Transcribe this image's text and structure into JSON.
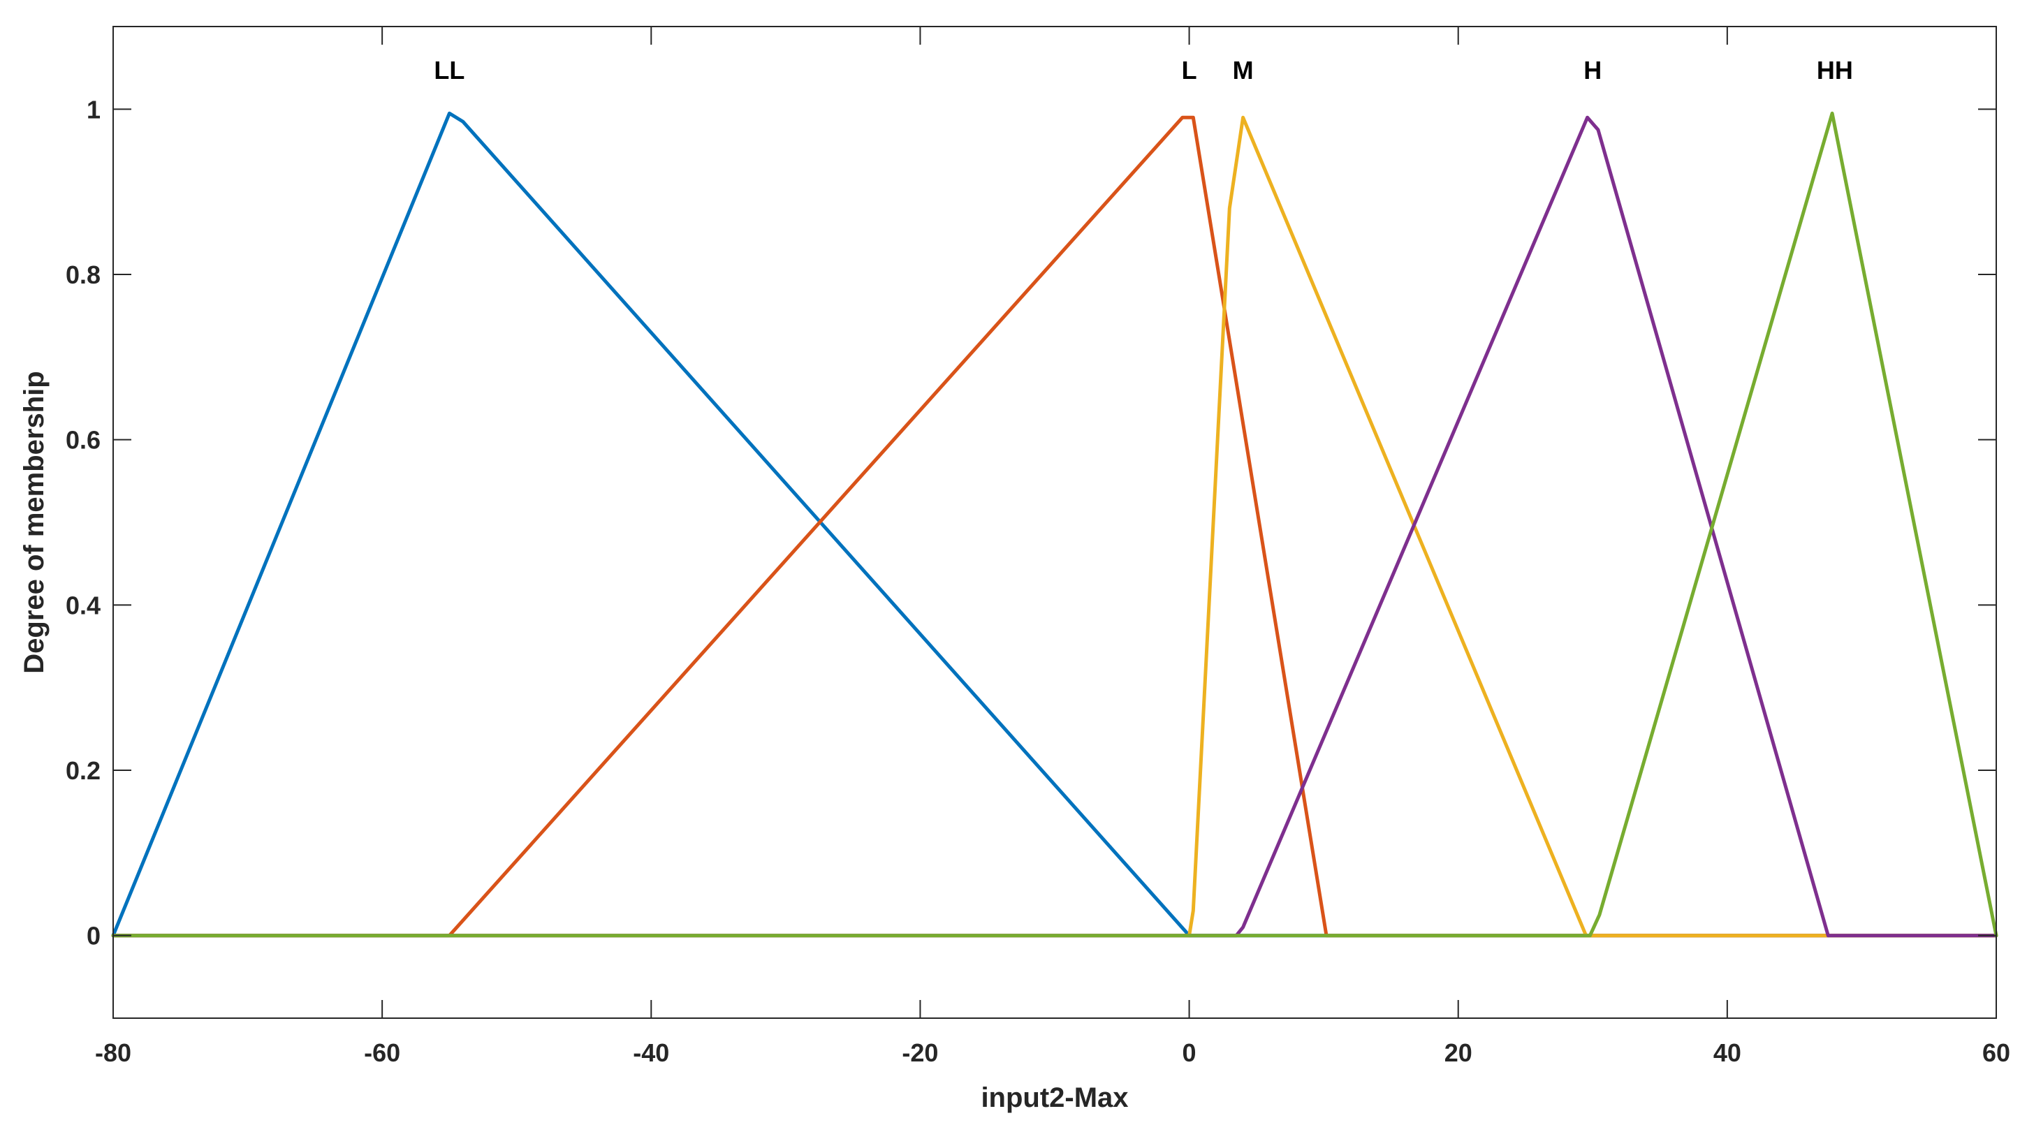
{
  "chart_data": {
    "type": "line",
    "title": "",
    "xlabel": "input2-Max",
    "ylabel": "Degree of membership",
    "xlim": [
      -80,
      60
    ],
    "ylim": [
      -0.1,
      1.1
    ],
    "xticks": [
      -80,
      -60,
      -40,
      -20,
      0,
      20,
      40,
      60
    ],
    "yticks": [
      0,
      0.2,
      0.4,
      0.6,
      0.8,
      1
    ],
    "xtick_labels": [
      "-80",
      "-60",
      "-40",
      "-20",
      "0",
      "20",
      "40",
      "60"
    ],
    "ytick_labels": [
      "0",
      "0.2",
      "0.4",
      "0.6",
      "0.8",
      "1"
    ],
    "grid": false,
    "series": [
      {
        "name": "LL",
        "color": "#0072BD",
        "label_x": -55,
        "points": [
          [
            -80,
            0
          ],
          [
            -55,
            0.995
          ],
          [
            -54,
            0.985
          ],
          [
            0,
            0
          ],
          [
            60,
            0
          ]
        ]
      },
      {
        "name": "L",
        "color": "#D95319",
        "label_x": 0,
        "points": [
          [
            -80,
            0
          ],
          [
            -55,
            0
          ],
          [
            -0.5,
            0.99
          ],
          [
            0.3,
            0.99
          ],
          [
            10.2,
            0
          ],
          [
            60,
            0
          ]
        ]
      },
      {
        "name": "M",
        "color": "#EDB120",
        "label_x": 4,
        "points": [
          [
            -80,
            0
          ],
          [
            0,
            0
          ],
          [
            0.3,
            0.03
          ],
          [
            3,
            0.88
          ],
          [
            4,
            0.99
          ],
          [
            29.5,
            0
          ],
          [
            60,
            0
          ]
        ]
      },
      {
        "name": "H",
        "color": "#7E2F8E",
        "label_x": 30,
        "points": [
          [
            -80,
            0
          ],
          [
            3.5,
            0
          ],
          [
            4,
            0.01
          ],
          [
            29.6,
            0.99
          ],
          [
            30.4,
            0.975
          ],
          [
            47.5,
            0
          ],
          [
            60,
            0
          ]
        ]
      },
      {
        "name": "HH",
        "color": "#77AC30",
        "label_x": 48,
        "points": [
          [
            -80,
            0
          ],
          [
            29.8,
            0
          ],
          [
            30.5,
            0.025
          ],
          [
            47.8,
            0.995
          ],
          [
            60,
            0
          ]
        ]
      }
    ]
  }
}
